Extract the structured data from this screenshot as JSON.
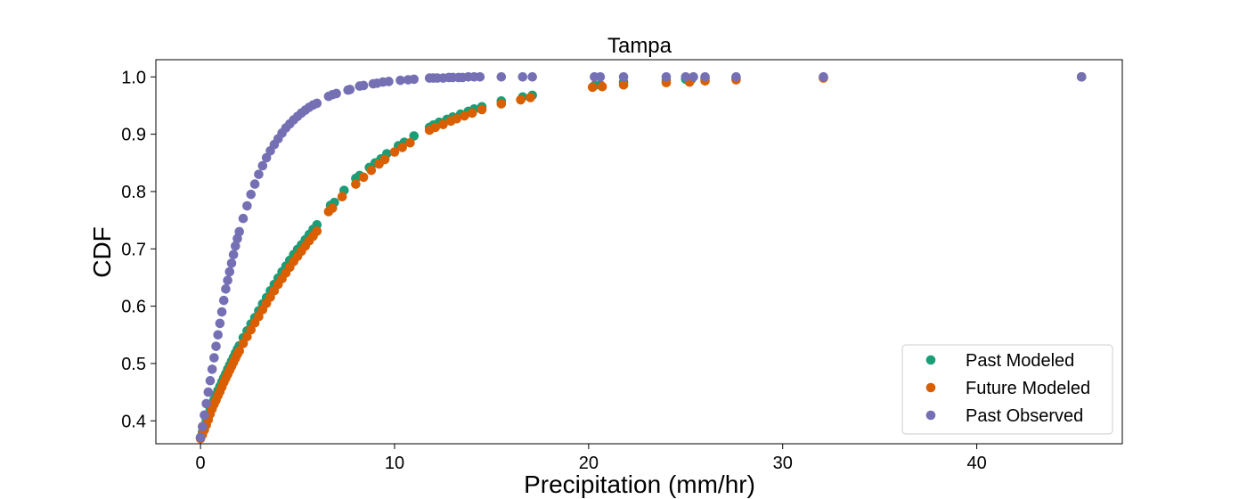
{
  "chart_data": {
    "type": "scatter",
    "title": "Tampa",
    "xlabel": "Precipitation (mm/hr)",
    "ylabel": "CDF",
    "xlim": [
      -2.3,
      47.5
    ],
    "ylim": [
      0.36,
      1.03
    ],
    "xticks": [
      0,
      10,
      20,
      30,
      40
    ],
    "yticks": [
      0.4,
      0.5,
      0.6,
      0.7,
      0.8,
      0.9,
      1.0
    ],
    "xtick_labels": [
      "0",
      "10",
      "20",
      "30",
      "40"
    ],
    "ytick_labels": [
      "0.4",
      "0.5",
      "0.6",
      "0.7",
      "0.8",
      "0.9",
      "1.0"
    ],
    "grid": false,
    "legend_position": "lower-right",
    "series": [
      {
        "name": "Past Modeled",
        "color": "#1b9e77",
        "x": [
          0.0,
          0.1,
          0.2,
          0.3,
          0.4,
          0.5,
          0.6,
          0.7,
          0.8,
          0.9,
          1.0,
          1.1,
          1.2,
          1.3,
          1.4,
          1.5,
          1.6,
          1.7,
          1.8,
          1.9,
          2.0,
          2.2,
          2.4,
          2.6,
          2.8,
          3.0,
          3.2,
          3.4,
          3.6,
          3.8,
          4.0,
          4.2,
          4.4,
          4.6,
          4.8,
          5.0,
          5.2,
          5.4,
          5.6,
          5.8,
          6.0,
          6.7,
          6.9,
          7.4,
          8.0,
          8.2,
          8.7,
          9.0,
          9.3,
          9.6,
          10.2,
          10.5,
          11.0,
          11.8,
          12.0,
          12.3,
          12.7,
          13.0,
          13.4,
          13.8,
          14.1,
          14.5,
          15.5,
          16.6,
          17.1,
          20.3,
          20.6,
          21.8,
          24.0,
          25.0,
          25.3,
          26.0,
          27.6,
          32.1,
          45.4
        ],
        "y": [
          0.371,
          0.38,
          0.39,
          0.4,
          0.41,
          0.42,
          0.43,
          0.437,
          0.445,
          0.453,
          0.46,
          0.468,
          0.475,
          0.482,
          0.49,
          0.497,
          0.504,
          0.511,
          0.518,
          0.525,
          0.531,
          0.545,
          0.557,
          0.569,
          0.58,
          0.592,
          0.604,
          0.615,
          0.627,
          0.638,
          0.649,
          0.66,
          0.67,
          0.68,
          0.69,
          0.699,
          0.707,
          0.716,
          0.725,
          0.734,
          0.742,
          0.776,
          0.781,
          0.802,
          0.823,
          0.828,
          0.842,
          0.85,
          0.857,
          0.866,
          0.88,
          0.886,
          0.897,
          0.912,
          0.916,
          0.921,
          0.926,
          0.93,
          0.935,
          0.94,
          0.944,
          0.948,
          0.958,
          0.965,
          0.968,
          0.985,
          0.986,
          0.991,
          0.994,
          0.996,
          0.996,
          0.997,
          0.998,
          0.999,
          1.0
        ]
      },
      {
        "name": "Future Modeled",
        "color": "#d95f02",
        "x": [
          0.0,
          0.1,
          0.2,
          0.3,
          0.4,
          0.5,
          0.6,
          0.7,
          0.8,
          0.9,
          1.0,
          1.1,
          1.2,
          1.3,
          1.4,
          1.5,
          1.6,
          1.7,
          1.8,
          1.9,
          2.0,
          2.2,
          2.4,
          2.6,
          2.8,
          3.0,
          3.2,
          3.4,
          3.6,
          3.8,
          4.0,
          4.2,
          4.4,
          4.6,
          4.8,
          5.0,
          5.2,
          5.4,
          5.6,
          5.8,
          6.0,
          6.6,
          6.8,
          7.3,
          8.0,
          8.4,
          8.8,
          9.2,
          9.5,
          10.0,
          10.4,
          10.8,
          11.8,
          12.1,
          12.5,
          12.9,
          13.2,
          13.6,
          14.0,
          14.5,
          15.5,
          16.5,
          17.0,
          20.2,
          20.7,
          21.8,
          24.0,
          25.2,
          26.0,
          27.6,
          32.1,
          45.4
        ],
        "y": [
          0.369,
          0.376,
          0.384,
          0.393,
          0.402,
          0.412,
          0.421,
          0.429,
          0.436,
          0.444,
          0.451,
          0.459,
          0.467,
          0.474,
          0.481,
          0.488,
          0.495,
          0.502,
          0.509,
          0.516,
          0.522,
          0.535,
          0.547,
          0.559,
          0.571,
          0.582,
          0.594,
          0.605,
          0.616,
          0.627,
          0.638,
          0.648,
          0.658,
          0.668,
          0.678,
          0.687,
          0.696,
          0.705,
          0.714,
          0.722,
          0.731,
          0.765,
          0.771,
          0.791,
          0.813,
          0.825,
          0.837,
          0.848,
          0.856,
          0.869,
          0.877,
          0.885,
          0.907,
          0.912,
          0.917,
          0.923,
          0.927,
          0.932,
          0.937,
          0.943,
          0.953,
          0.96,
          0.964,
          0.982,
          0.983,
          0.986,
          0.99,
          0.991,
          0.993,
          0.995,
          0.998,
          1.0
        ]
      },
      {
        "name": "Past Observed",
        "color": "#7570b3",
        "x": [
          0.0,
          0.1,
          0.2,
          0.3,
          0.4,
          0.5,
          0.6,
          0.7,
          0.8,
          0.9,
          1.0,
          1.1,
          1.2,
          1.3,
          1.4,
          1.5,
          1.6,
          1.7,
          1.8,
          1.9,
          2.0,
          2.2,
          2.4,
          2.6,
          2.8,
          3.0,
          3.2,
          3.4,
          3.6,
          3.8,
          4.0,
          4.2,
          4.4,
          4.6,
          4.8,
          5.0,
          5.2,
          5.4,
          5.6,
          5.8,
          6.0,
          6.6,
          6.8,
          7.0,
          7.6,
          7.7,
          8.2,
          8.4,
          8.9,
          9.1,
          9.4,
          9.7,
          10.3,
          10.7,
          11.0,
          11.8,
          12.0,
          12.2,
          12.5,
          12.8,
          13.0,
          13.3,
          13.5,
          13.8,
          14.1,
          14.4,
          15.5,
          16.6,
          17.1,
          20.3,
          20.6,
          21.8,
          24.0,
          25.0,
          25.4,
          26.0,
          27.6,
          32.1,
          45.4
        ],
        "y": [
          0.371,
          0.39,
          0.41,
          0.43,
          0.45,
          0.47,
          0.49,
          0.51,
          0.53,
          0.55,
          0.57,
          0.59,
          0.61,
          0.63,
          0.645,
          0.66,
          0.675,
          0.69,
          0.705,
          0.718,
          0.73,
          0.753,
          0.775,
          0.795,
          0.813,
          0.83,
          0.845,
          0.859,
          0.871,
          0.882,
          0.892,
          0.902,
          0.911,
          0.918,
          0.925,
          0.931,
          0.937,
          0.942,
          0.947,
          0.951,
          0.954,
          0.966,
          0.969,
          0.971,
          0.977,
          0.978,
          0.984,
          0.985,
          0.988,
          0.989,
          0.991,
          0.992,
          0.994,
          0.995,
          0.996,
          0.998,
          0.998,
          0.998,
          0.998,
          0.999,
          0.999,
          0.999,
          0.999,
          1.0,
          1.0,
          1.0,
          1.0,
          1.0,
          1.0,
          1.0,
          1.0,
          1.0,
          1.0,
          1.0,
          1.0,
          1.0,
          1.0,
          1.0,
          1.0
        ]
      }
    ]
  }
}
